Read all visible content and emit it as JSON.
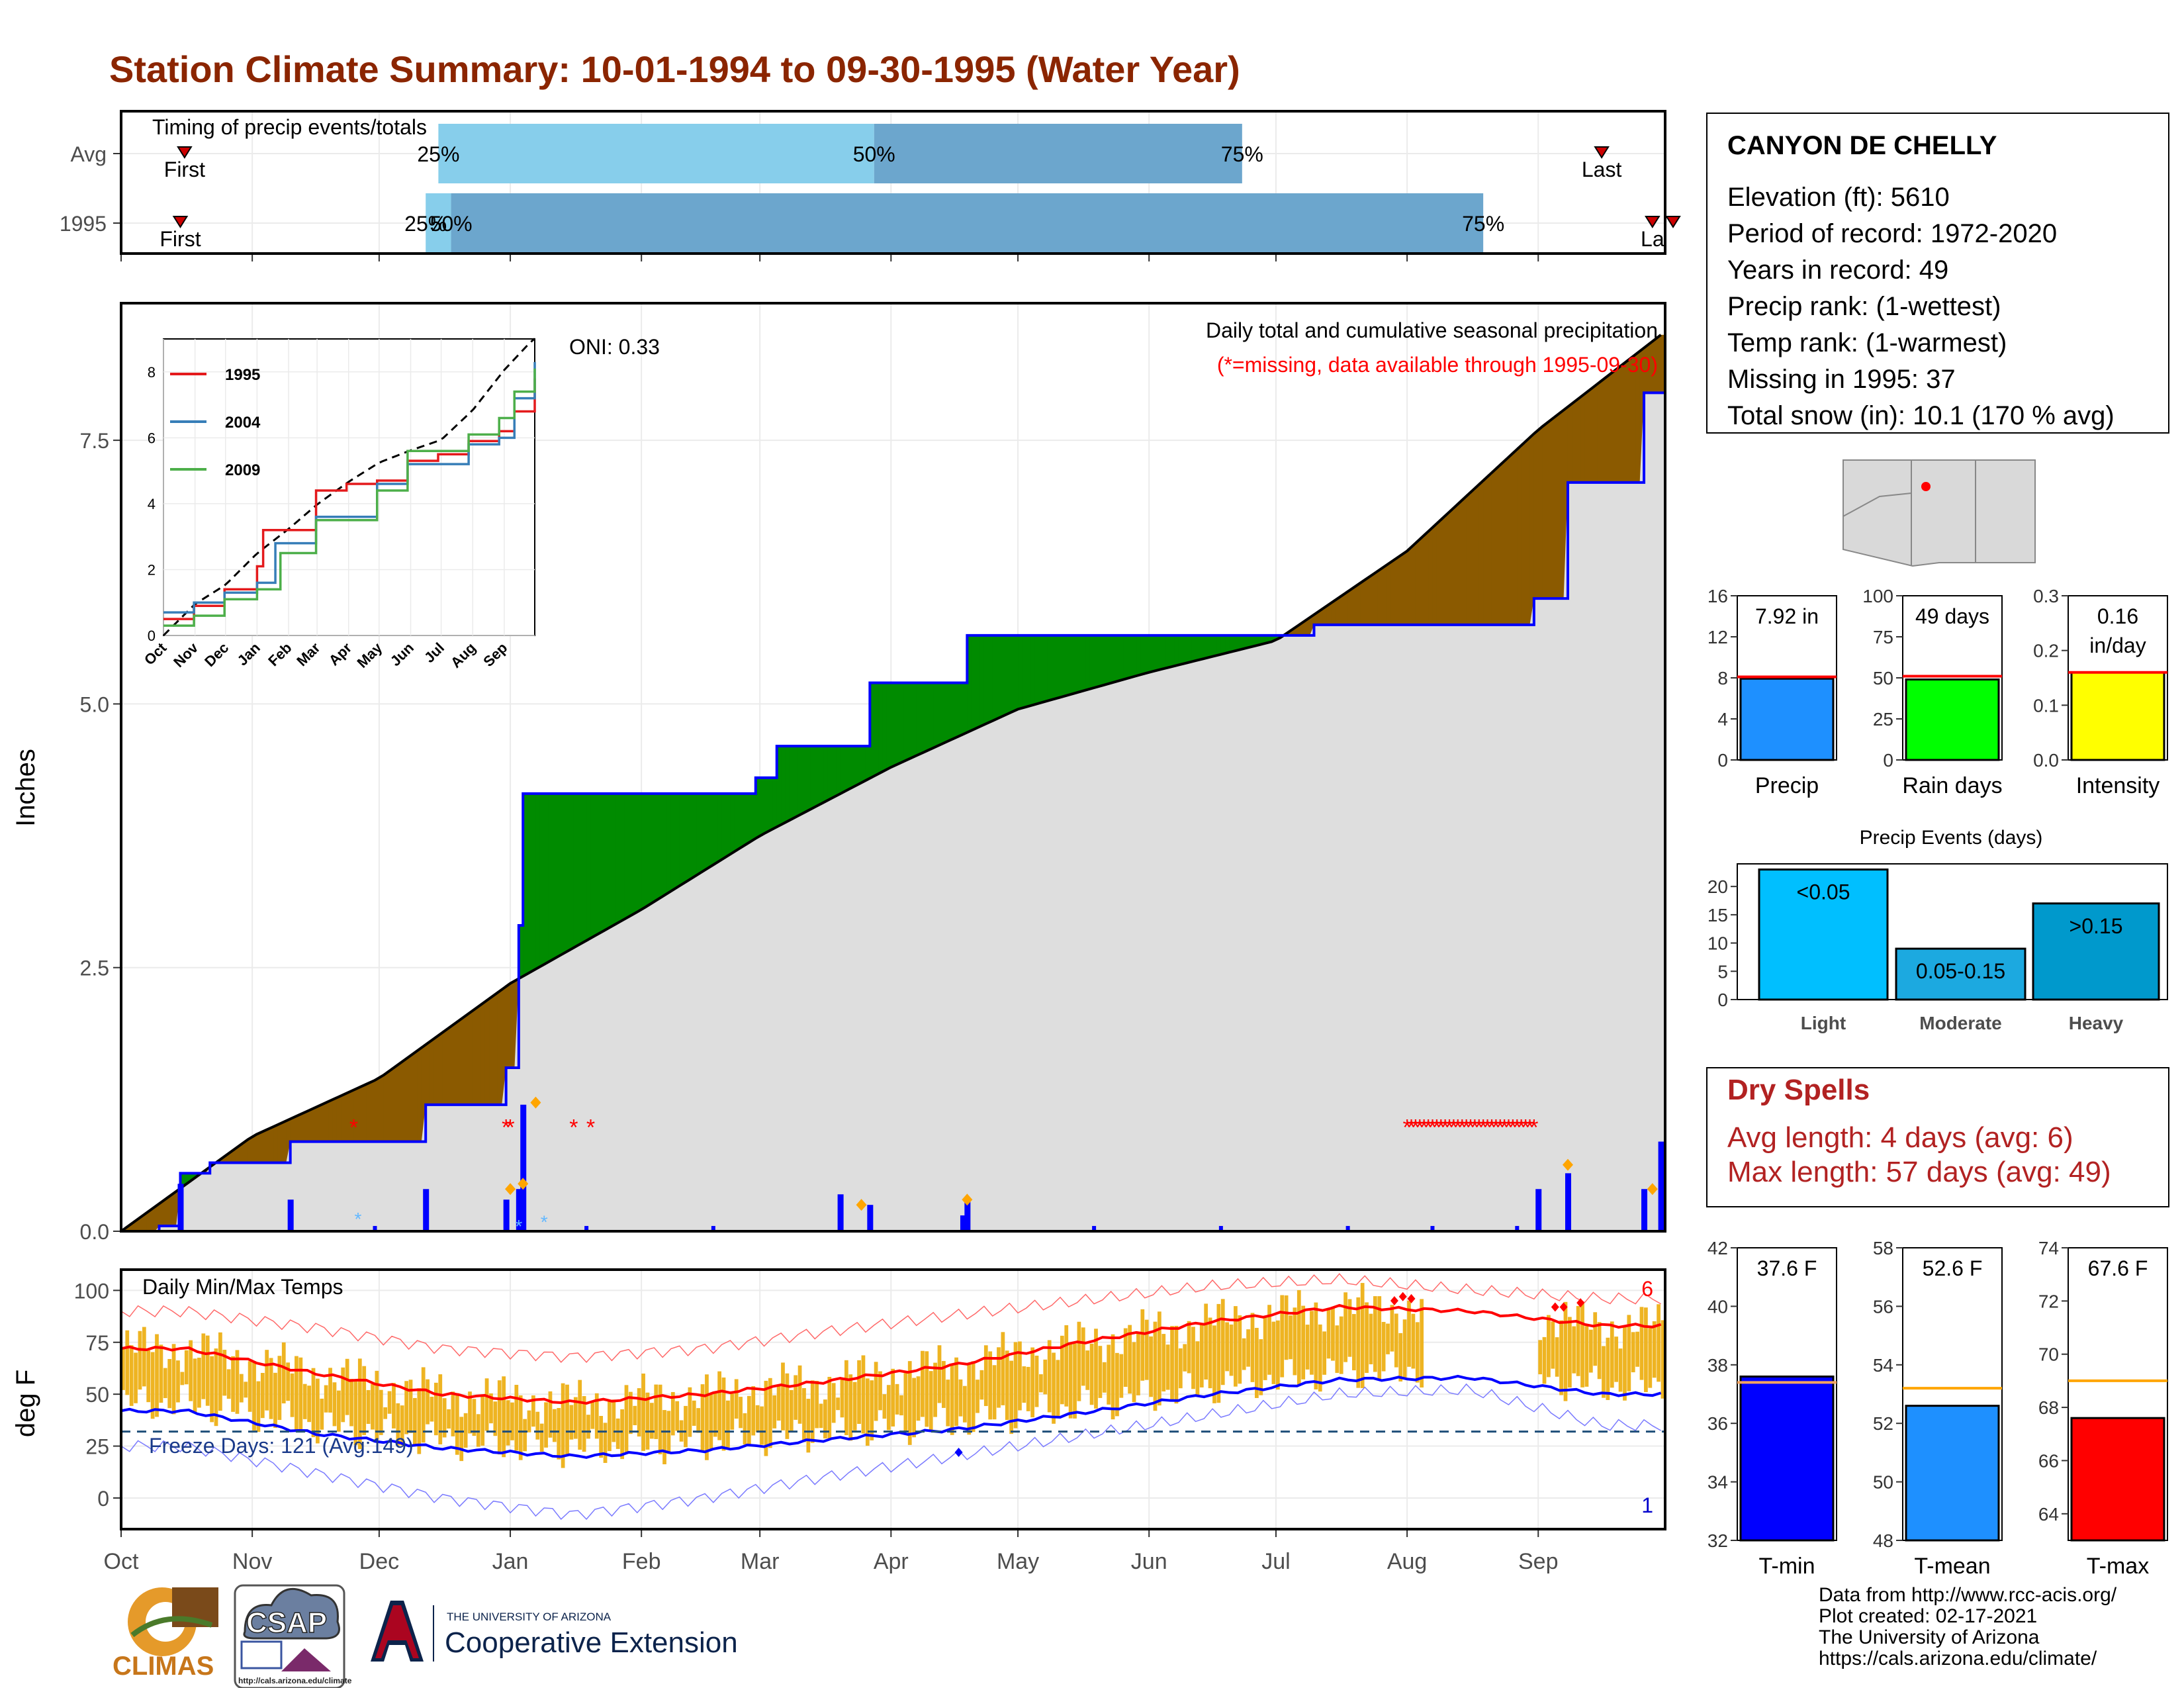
{
  "title": "Station Climate Summary: 10-01-1994 to 09-30-1995 (Water Year)",
  "timing": {
    "label": "Timing of precip events/totals",
    "rows": [
      "Avg",
      "1995"
    ],
    "first": "First",
    "last": "Last",
    "last_clipped": "La",
    "p25": "25%",
    "p50": "50%",
    "p75": "75%",
    "avg_day": {
      "first": 15,
      "p25": 75,
      "p50": 178,
      "p75": 265,
      "last": 350
    },
    "yr_day": {
      "first": 14,
      "p25": 72,
      "p50": 78,
      "p75": 322,
      "last": 362
    },
    "colors": {
      "light": "#87CEEB",
      "dark": "#6CA6CD"
    }
  },
  "main": {
    "ylabel": "Inches",
    "oni": "ONI: 0.33",
    "note1": "Daily total and cumulative seasonal precipitation",
    "note2": "(*=missing, data available through 1995-09-30)",
    "months": [
      "Oct",
      "Nov",
      "Dec",
      "Jan",
      "Feb",
      "Mar",
      "Apr",
      "May",
      "Jun",
      "Jul",
      "Aug",
      "Sep"
    ],
    "yticks": [
      "0.0",
      "2.5",
      "5.0",
      "7.5"
    ]
  },
  "inset": {
    "yticks": [
      "0",
      "2",
      "4",
      "6",
      "8"
    ],
    "months": [
      "Oct",
      "Nov",
      "Dec",
      "Jan",
      "Feb",
      "Mar",
      "Apr",
      "May",
      "Jun",
      "Jul",
      "Aug",
      "Sep"
    ],
    "series": [
      {
        "name": "1995",
        "color": "#E41A1C"
      },
      {
        "name": "2004",
        "color": "#377EB8"
      },
      {
        "name": "2009",
        "color": "#4DAF4A"
      }
    ]
  },
  "chart_data": [
    {
      "type": "area",
      "title": "Daily total and cumulative seasonal precipitation",
      "ylabel": "Inches",
      "ylim": [
        0,
        8.8
      ],
      "x": [
        "1994-10-01",
        "1994-10-10",
        "1994-10-15",
        "1994-10-22",
        "1994-11-10",
        "1994-12-12",
        "1994-12-31",
        "1995-01-03",
        "1995-01-04",
        "1995-01-05",
        "1995-02-28",
        "1995-03-05",
        "1995-03-27",
        "1995-04-19",
        "1995-07-10",
        "1995-08-31",
        "1995-09-08",
        "1995-09-26",
        "1995-09-30"
      ],
      "series": [
        {
          "name": "1995",
          "values": [
            0,
            0.05,
            0.55,
            0.65,
            0.85,
            1.2,
            1.55,
            2.9,
            4.15,
            4.15,
            4.3,
            4.6,
            5.2,
            5.65,
            5.75,
            6.0,
            7.1,
            7.95,
            7.95
          ]
        }
      ],
      "avg_cumulative": {
        "x": [
          "1994-10-01",
          "1994-11-01",
          "1994-12-01",
          "1995-01-01",
          "1995-02-01",
          "1995-03-01",
          "1995-04-01",
          "1995-05-01",
          "1995-06-01",
          "1995-07-01",
          "1995-08-01",
          "1995-09-01",
          "1995-09-30"
        ],
        "values": [
          0,
          0.9,
          1.45,
          2.35,
          3.05,
          3.75,
          4.4,
          4.95,
          5.3,
          5.6,
          6.45,
          7.6,
          8.5
        ]
      },
      "daily_bars": {
        "x": [
          "1994-10-15",
          "1994-11-10",
          "1994-12-12",
          "1994-12-31",
          "1995-01-03",
          "1995-01-04",
          "1995-03-20",
          "1995-03-27",
          "1995-04-18",
          "1995-04-19",
          "1995-09-01",
          "1995-09-08",
          "1995-09-26",
          "1995-09-30"
        ],
        "values": [
          0.45,
          0.3,
          0.4,
          0.3,
          0.4,
          1.2,
          0.35,
          0.25,
          0.15,
          0.3,
          0.4,
          0.55,
          0.4,
          0.85
        ]
      }
    },
    {
      "type": "line",
      "title": "Daily Min/Max Temps",
      "ylabel": "deg F",
      "ylim": [
        -15,
        110
      ],
      "x": [
        "Oct",
        "Nov",
        "Dec",
        "Jan",
        "Feb",
        "Mar",
        "Apr",
        "May",
        "Jun",
        "Jul",
        "Aug",
        "Sep"
      ],
      "series": [
        {
          "name": "avg max",
          "values": [
            72,
            60,
            50,
            46,
            50,
            56,
            64,
            75,
            85,
            92,
            90,
            83
          ]
        },
        {
          "name": "avg min",
          "values": [
            42,
            31,
            24,
            20,
            23,
            28,
            33,
            41,
            50,
            57,
            58,
            50
          ]
        },
        {
          "name": "record max",
          "values": [
            90,
            82,
            72,
            68,
            72,
            80,
            88,
            95,
            102,
            105,
            100,
            96
          ]
        },
        {
          "name": "record min",
          "values": [
            25,
            12,
            0,
            -8,
            0,
            10,
            20,
            30,
            40,
            50,
            52,
            35
          ]
        }
      ],
      "freeze_days": "Freeze Days: 121 (Avg:149)",
      "freeze_line": 32,
      "count_hot": "6",
      "count_cold": "1"
    },
    {
      "type": "bar",
      "categories": [
        "Precip"
      ],
      "values": [
        7.92
      ],
      "avg": 8.1,
      "ylim": [
        0,
        16
      ],
      "label": "7.92 in"
    },
    {
      "type": "bar",
      "categories": [
        "Rain days"
      ],
      "values": [
        49
      ],
      "avg": 51,
      "ylim": [
        0,
        100
      ],
      "label": "49 days"
    },
    {
      "type": "bar",
      "categories": [
        "Intensity"
      ],
      "values": [
        0.16
      ],
      "avg": 0.16,
      "ylim": [
        0,
        0.3
      ],
      "label": "0.16 in/day"
    },
    {
      "type": "bar",
      "title": "Precip Events (days)",
      "categories": [
        "Light",
        "Moderate",
        "Heavy"
      ],
      "values": [
        23,
        9,
        17
      ],
      "labels": [
        "<0.05",
        "0.05-0.15",
        ">0.15"
      ],
      "ylim": [
        0,
        24
      ]
    },
    {
      "type": "bar",
      "categories": [
        "T-min"
      ],
      "values": [
        37.6
      ],
      "avg": 37.4,
      "ylim": [
        32,
        42
      ],
      "label": "37.6 F"
    },
    {
      "type": "bar",
      "categories": [
        "T-mean"
      ],
      "values": [
        52.6
      ],
      "avg": 53.2,
      "ylim": [
        48,
        58
      ],
      "label": "52.6 F"
    },
    {
      "type": "bar",
      "categories": [
        "T-max"
      ],
      "values": [
        67.6
      ],
      "avg": 69.0,
      "ylim": [
        63,
        74
      ],
      "label": "67.6 F"
    }
  ],
  "temps": {
    "label": "Daily Min/Max Temps",
    "ylabel": "deg F",
    "yticks": [
      "0",
      "25",
      "50",
      "75",
      "100"
    ],
    "freeze": "Freeze Days: 121 (Avg:149)",
    "hot": "6",
    "cold": "1"
  },
  "station": {
    "name": "CANYON DE CHELLY",
    "lines": [
      "Elevation (ft): 5610",
      "Period of record: 1972-2020",
      "Years in record: 49",
      "Precip rank:  (1-wettest)",
      "Temp rank:  (1-warmest)",
      "Missing in 1995: 37",
      "Total snow (in): 10.1 (170 % avg)"
    ]
  },
  "mini": {
    "precip": {
      "label": "Precip",
      "text": "7.92 in",
      "ticks": [
        "0",
        "4",
        "8",
        "12",
        "16"
      ],
      "color": "#1E90FF"
    },
    "rain": {
      "label": "Rain days",
      "text": "49 days",
      "ticks": [
        "0",
        "25",
        "50",
        "75",
        "100"
      ],
      "color": "#00FF00"
    },
    "intensity": {
      "label": "Intensity",
      "text1": "0.16",
      "text2": "in/day",
      "ticks": [
        "0.0",
        "0.1",
        "0.2",
        "0.3"
      ],
      "color": "#FFFF00"
    }
  },
  "events": {
    "title": "Precip Events (days)",
    "ticks": [
      "0",
      "5",
      "10",
      "15",
      "20"
    ],
    "cats": [
      "Light",
      "Moderate",
      "Heavy"
    ],
    "labels": [
      "<0.05",
      "0.05-0.15",
      ">0.15"
    ]
  },
  "dry": {
    "title": "Dry Spells",
    "avg": "Avg length: 4 days (avg: 6)",
    "max": "Max length: 57 days (avg: 49)"
  },
  "tbars": {
    "tmin": {
      "label": "T-min",
      "text": "37.6 F",
      "ticks": [
        "32",
        "34",
        "36",
        "38",
        "40",
        "42"
      ],
      "color": "#0000FF"
    },
    "tmean": {
      "label": "T-mean",
      "text": "52.6 F",
      "ticks": [
        "48",
        "50",
        "52",
        "54",
        "56",
        "58"
      ],
      "color": "#1E90FF"
    },
    "tmax": {
      "label": "T-max",
      "text": "67.6 F",
      "ticks": [
        "64",
        "66",
        "68",
        "70",
        "72",
        "74"
      ],
      "color": "#FF0000"
    }
  },
  "footer": [
    "Data from http://www.rcc-acis.org/",
    "Plot created: 02-17-2021",
    "The University of Arizona",
    "https://cals.arizona.edu/climate/"
  ],
  "logos": {
    "climas": "CLIMAS",
    "csap": "CSAP",
    "csap_url": "http://cals.arizona.edu/climate",
    "ua_small": "THE UNIVERSITY OF ARIZONA",
    "ua_big": "Cooperative Extension"
  }
}
